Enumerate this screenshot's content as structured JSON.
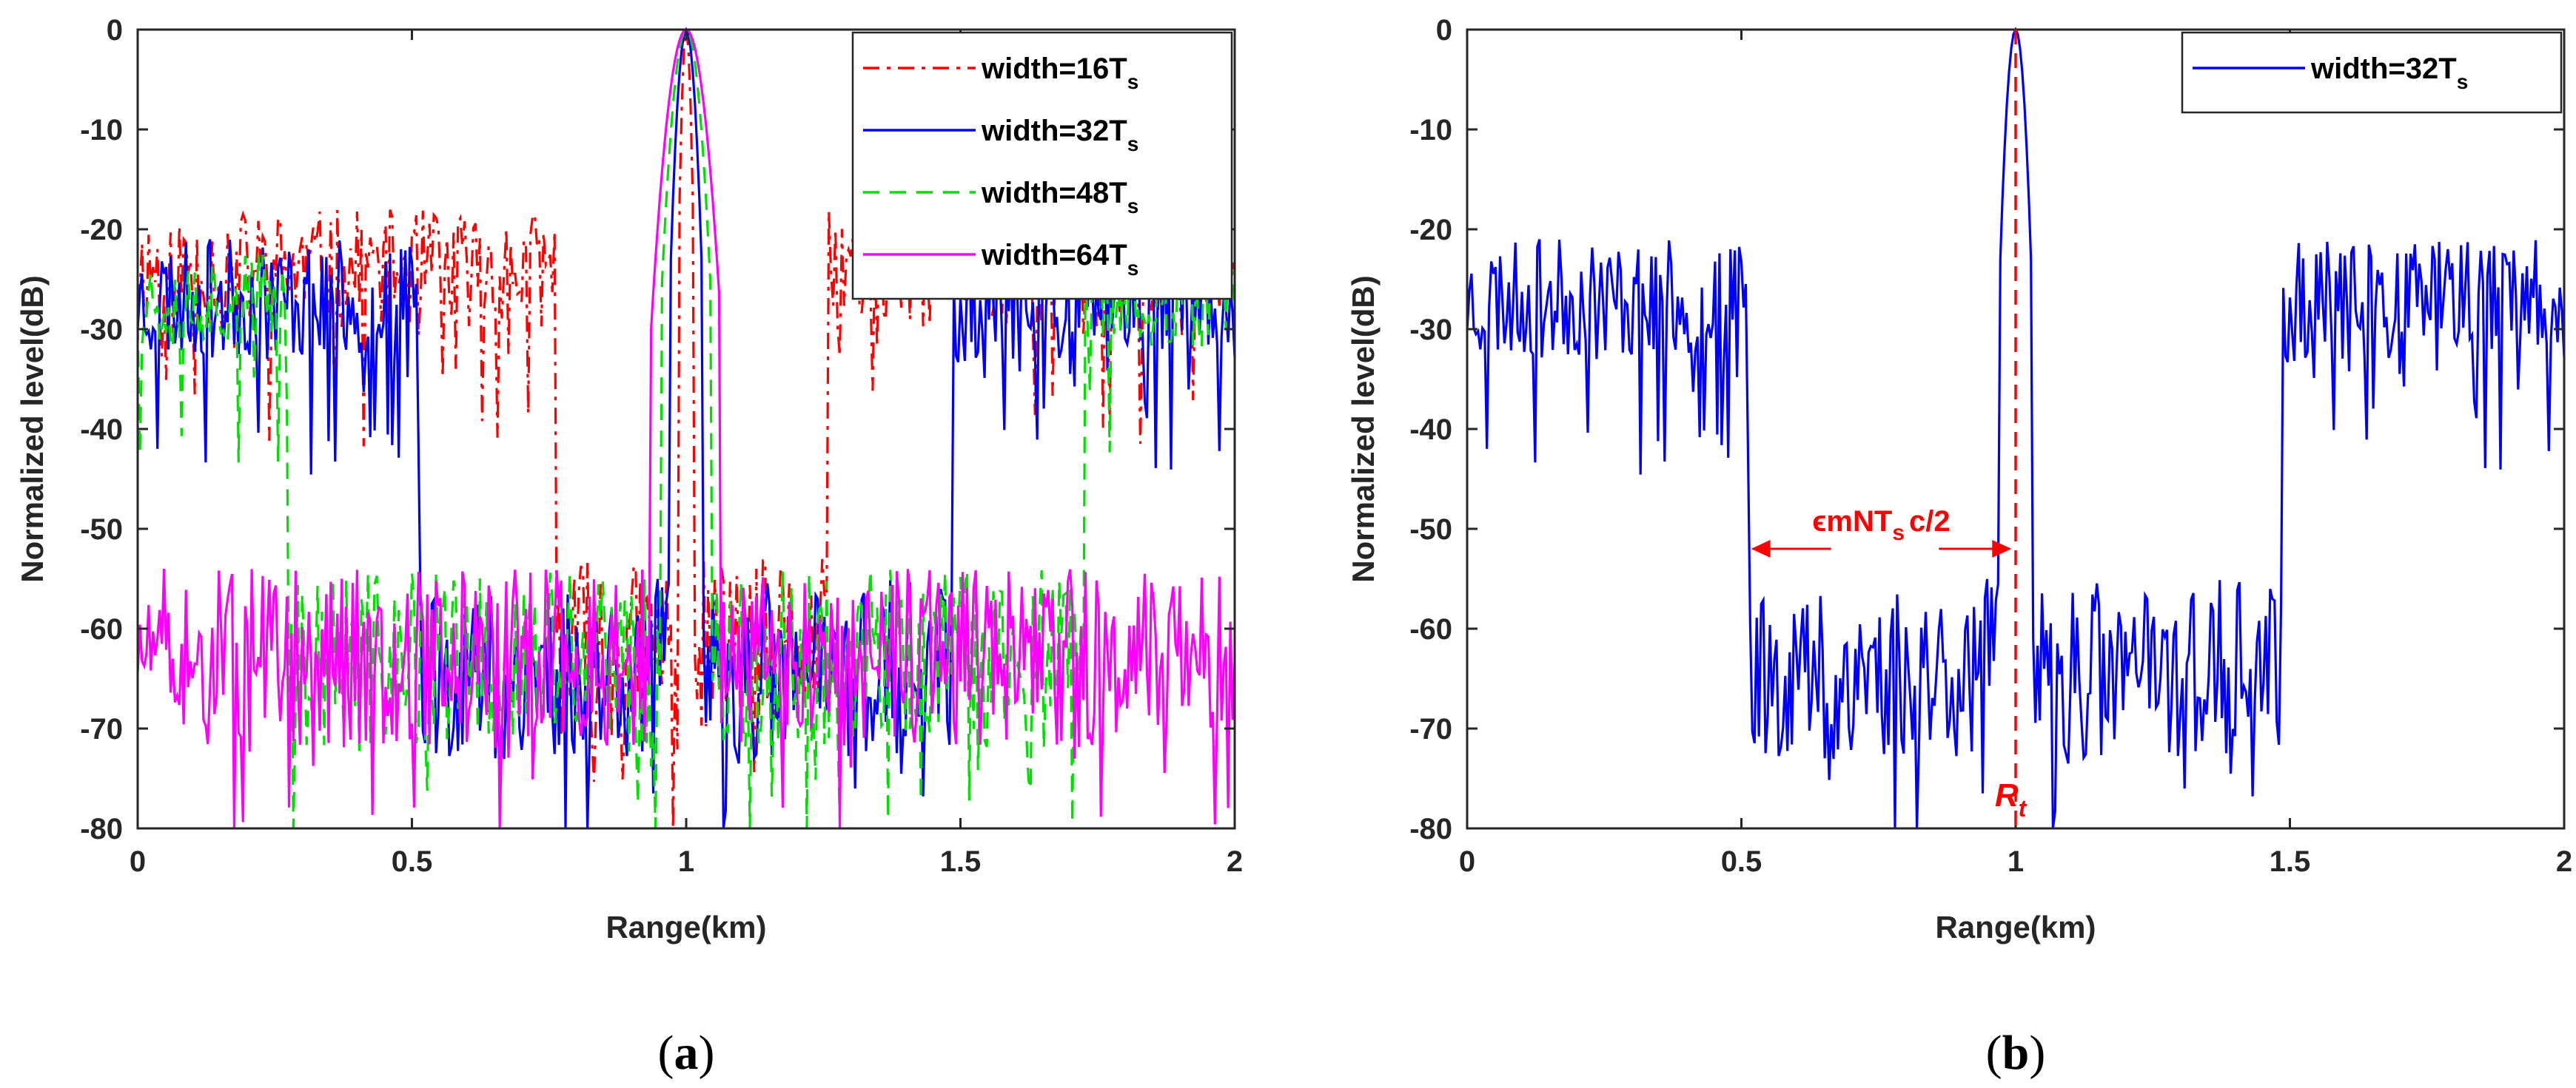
{
  "figure": {
    "caption_a": "a",
    "caption_b": "b"
  },
  "chart_data": [
    {
      "type": "line",
      "panel": "a",
      "xlabel": "Range(km)",
      "ylabel": "Normalized level(dB)",
      "xlim": [
        0,
        2
      ],
      "ylim": [
        -80,
        0
      ],
      "xticks": [
        "0",
        "0.5",
        "1",
        "1.5",
        "2"
      ],
      "yticks": [
        "0",
        "-10",
        "-20",
        "-30",
        "-40",
        "-50",
        "-60",
        "-70",
        "-80"
      ],
      "legend_position": "top-right",
      "series": [
        {
          "name": "width=16T",
          "sub": "s",
          "color": "#ff0000",
          "dash": "dashdot",
          "mainlobe_halfwidth_km": 0.016,
          "noise_floor": -24,
          "noise_amp": 6,
          "valley_floor": -62,
          "valley_region": [
            0.76,
            1.26
          ],
          "seed": 11
        },
        {
          "name": "width=32T",
          "sub": "s",
          "color": "#0000ff",
          "dash": "solid",
          "mainlobe_halfwidth_km": 0.032,
          "noise_floor": -27,
          "noise_amp": 6,
          "valley_floor": -64,
          "valley_region": [
            0.515,
            1.485
          ],
          "seed": 23
        },
        {
          "name": "width=48T",
          "sub": "s",
          "color": "#00e000",
          "dash": "dashed",
          "mainlobe_halfwidth_km": 0.048,
          "noise_floor": -27,
          "noise_amp": 5,
          "valley_floor": -63,
          "valley_region": [
            0.275,
            1.725
          ],
          "seed": 37
        },
        {
          "name": "width=64T",
          "sub": "s",
          "color": "#ff00ff",
          "dash": "solid",
          "mainlobe_halfwidth_km": 0.064,
          "noise_floor": -62,
          "noise_amp": 5,
          "valley_floor": -63,
          "valley_region": [
            0.02,
            1.98
          ],
          "seed": 51
        }
      ]
    },
    {
      "type": "line",
      "panel": "b",
      "xlabel": "Range(km)",
      "ylabel": "Normalized level(dB)",
      "xlim": [
        0,
        2
      ],
      "ylim": [
        -80,
        0
      ],
      "xticks": [
        "0",
        "0.5",
        "1",
        "1.5",
        "2"
      ],
      "yticks": [
        "0",
        "-10",
        "-20",
        "-30",
        "-40",
        "-50",
        "-60",
        "-70",
        "-80"
      ],
      "legend_position": "top-right",
      "series": [
        {
          "name": "width=32T",
          "sub": "s",
          "color": "#0000ff",
          "dash": "solid",
          "mainlobe_halfwidth_km": 0.032,
          "noise_floor": -27,
          "noise_amp": 6,
          "valley_floor": -64,
          "valley_region": [
            0.515,
            1.485
          ],
          "seed": 23
        }
      ],
      "annotations": {
        "target_line_x": 1.0,
        "target_label": "R",
        "target_label_sub": "t",
        "arrow_y": -52,
        "arrow_from": 0.515,
        "arrow_to": 0.995,
        "arrow_label_prefix": "ϵmNT",
        "arrow_label_sub": "s",
        "arrow_label_suffix": "c/2"
      }
    }
  ]
}
